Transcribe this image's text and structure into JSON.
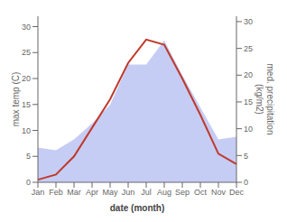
{
  "chart_data": {
    "type": "line",
    "categories": [
      "Jan",
      "Feb",
      "Mar",
      "Apr",
      "May",
      "Jun",
      "Jul",
      "Aug",
      "Sep",
      "Oct",
      "Nov",
      "Dec"
    ],
    "xlabel": "date (month)",
    "ylabel": "max temp (C)",
    "y2label": "med. precipitation\n(kg/m2)",
    "ylim": [
      0,
      32
    ],
    "yticks": [
      0,
      5,
      10,
      15,
      20,
      25,
      30
    ],
    "y2lim": [
      0,
      31
    ],
    "y2ticks": [
      0,
      5,
      10,
      15,
      20,
      25,
      30
    ],
    "grid": false,
    "series": [
      {
        "type": "area",
        "axis": "y2",
        "color": "#c5cdf5",
        "values": [
          6.5,
          6.0,
          8.0,
          11.0,
          14.5,
          22.0,
          22.0,
          26.5,
          20.0,
          14.0,
          8.0,
          8.5
        ]
      },
      {
        "type": "line",
        "color": "#c0392b",
        "values": [
          0.5,
          1.5,
          5.0,
          10.5,
          16.0,
          23.0,
          27.5,
          26.5,
          20.0,
          13.0,
          5.5,
          3.5
        ]
      }
    ]
  }
}
